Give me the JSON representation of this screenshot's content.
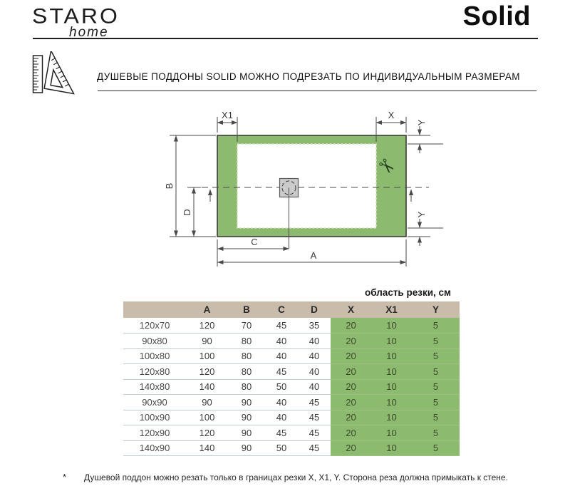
{
  "brand": {
    "logo_main": "STARO",
    "logo_sub": "home",
    "product_title": "Solid"
  },
  "heading": {
    "text": "ДУШЕВЫЕ ПОДДОНЫ SOLID МОЖНО ПОДРЕЗАТЬ ПО ИНДИВИДУАЛЬНЫМ РАЗМЕРАМ"
  },
  "diagram": {
    "labels": {
      "A": "A",
      "B": "B",
      "C": "C",
      "D": "D",
      "X": "X",
      "X1": "X1",
      "Y_top": "Y",
      "Y_bottom": "Y"
    },
    "icons": {
      "scissors": "✂",
      "ruler_square": "set-square-and-ruler"
    }
  },
  "table": {
    "area_label": "область резки, см",
    "columns": [
      "",
      "A",
      "B",
      "C",
      "D",
      "X",
      "X1",
      "Y"
    ],
    "rows": [
      {
        "size": "120x70",
        "values": [
          "120",
          "70",
          "45",
          "35",
          "20",
          "10",
          "5"
        ]
      },
      {
        "size": "90x80",
        "values": [
          "90",
          "80",
          "40",
          "40",
          "20",
          "10",
          "5"
        ]
      },
      {
        "size": "100x80",
        "values": [
          "100",
          "80",
          "40",
          "40",
          "20",
          "10",
          "5"
        ]
      },
      {
        "size": "120x80",
        "values": [
          "120",
          "80",
          "45",
          "40",
          "20",
          "10",
          "5"
        ]
      },
      {
        "size": "140x80",
        "values": [
          "140",
          "80",
          "50",
          "40",
          "20",
          "10",
          "5"
        ]
      },
      {
        "size": "90x90",
        "values": [
          "90",
          "90",
          "40",
          "45",
          "20",
          "10",
          "5"
        ]
      },
      {
        "size": "100x90",
        "values": [
          "100",
          "90",
          "40",
          "45",
          "20",
          "10",
          "5"
        ]
      },
      {
        "size": "120x90",
        "values": [
          "120",
          "90",
          "45",
          "45",
          "20",
          "10",
          "5"
        ]
      },
      {
        "size": "140x90",
        "values": [
          "140",
          "90",
          "50",
          "45",
          "20",
          "10",
          "5"
        ]
      }
    ]
  },
  "footnote": {
    "marker": "*",
    "text": "Душевой поддон можно резать только в границах резки X, X1, Y. Сторона реза должна примыкать к стене."
  },
  "colors": {
    "tray_green": "#8cba6e",
    "header_beige": "#c9bcab",
    "drain_gray": "#cbcbcb",
    "line_dark": "#3c3c3c"
  }
}
